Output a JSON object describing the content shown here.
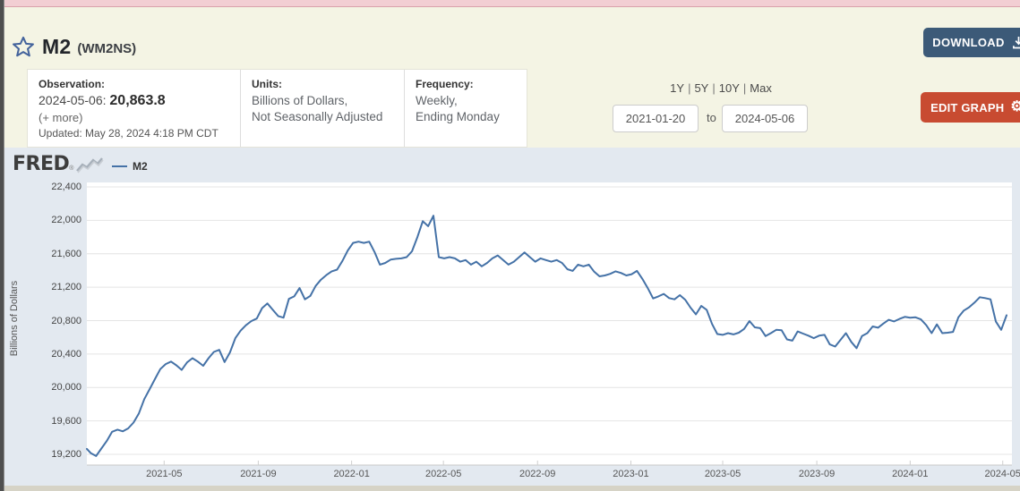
{
  "header": {
    "title": "M2",
    "series_id": "(WM2NS)",
    "download_label": "DOWNLOAD"
  },
  "info": {
    "observation_label": "Observation:",
    "observation_date": "2024-05-06:",
    "observation_value": "20,863.8",
    "more_label": "(+ more)",
    "updated": "Updated: May 28, 2024 4:18 PM CDT",
    "units_label": "Units:",
    "units_line1": "Billions of Dollars,",
    "units_line2": "Not Seasonally Adjusted",
    "frequency_label": "Frequency:",
    "frequency_line1": "Weekly,",
    "frequency_line2": "Ending Monday"
  },
  "range": {
    "presets": [
      "1Y",
      "5Y",
      "10Y",
      "Max"
    ],
    "separator": "|",
    "from": "2021-01-20",
    "to_word": "to",
    "to": "2024-05-06"
  },
  "edit_graph_label": "EDIT GRAPH",
  "logo": {
    "text": "FRED",
    "registered": "®"
  },
  "chart_data": {
    "type": "line",
    "legend": "M2",
    "ylabel": "Billions of Dollars",
    "ylim": [
      19200,
      22400
    ],
    "x_range": [
      "2021-01-20",
      "2024-05-06"
    ],
    "grid": true,
    "legend_position": "top-left",
    "line_color": "#4572a7",
    "plot_bg": "#ffffff",
    "outer_bg": "#e3e9f0",
    "y_ticks": [
      {
        "v": 22400,
        "label": "22,400"
      },
      {
        "v": 22000,
        "label": "22,000"
      },
      {
        "v": 21600,
        "label": "21,600"
      },
      {
        "v": 21200,
        "label": "21,200"
      },
      {
        "v": 20800,
        "label": "20,800"
      },
      {
        "v": 20400,
        "label": "20,400"
      },
      {
        "v": 20000,
        "label": "20,000"
      },
      {
        "v": 19600,
        "label": "19,600"
      },
      {
        "v": 19200,
        "label": "19,200"
      }
    ],
    "x_ticks": [
      {
        "date": "2021-05-01",
        "label": "2021-05"
      },
      {
        "date": "2021-09-01",
        "label": "2021-09"
      },
      {
        "date": "2022-01-01",
        "label": "2022-01"
      },
      {
        "date": "2022-05-01",
        "label": "2022-05"
      },
      {
        "date": "2022-09-01",
        "label": "2022-09"
      },
      {
        "date": "2023-01-01",
        "label": "2023-01"
      },
      {
        "date": "2023-05-01",
        "label": "2023-05"
      },
      {
        "date": "2023-09-01",
        "label": "2023-09"
      },
      {
        "date": "2024-01-01",
        "label": "2024-01"
      },
      {
        "date": "2024-05-01",
        "label": "2024-05"
      }
    ],
    "series": [
      {
        "name": "M2",
        "points": [
          [
            "2021-01-20",
            19265
          ],
          [
            "2021-01-25",
            19215
          ],
          [
            "2021-02-01",
            19180
          ],
          [
            "2021-02-08",
            19270
          ],
          [
            "2021-02-15",
            19360
          ],
          [
            "2021-02-22",
            19470
          ],
          [
            "2021-03-01",
            19495
          ],
          [
            "2021-03-08",
            19475
          ],
          [
            "2021-03-15",
            19510
          ],
          [
            "2021-03-22",
            19580
          ],
          [
            "2021-03-29",
            19690
          ],
          [
            "2021-04-05",
            19860
          ],
          [
            "2021-04-12",
            19980
          ],
          [
            "2021-04-19",
            20100
          ],
          [
            "2021-04-26",
            20220
          ],
          [
            "2021-05-03",
            20280
          ],
          [
            "2021-05-10",
            20310
          ],
          [
            "2021-05-17",
            20265
          ],
          [
            "2021-05-24",
            20210
          ],
          [
            "2021-05-31",
            20300
          ],
          [
            "2021-06-07",
            20350
          ],
          [
            "2021-06-14",
            20310
          ],
          [
            "2021-06-21",
            20260
          ],
          [
            "2021-06-28",
            20350
          ],
          [
            "2021-07-05",
            20425
          ],
          [
            "2021-07-12",
            20450
          ],
          [
            "2021-07-19",
            20305
          ],
          [
            "2021-07-26",
            20420
          ],
          [
            "2021-08-02",
            20590
          ],
          [
            "2021-08-09",
            20680
          ],
          [
            "2021-08-16",
            20745
          ],
          [
            "2021-08-23",
            20795
          ],
          [
            "2021-08-30",
            20825
          ],
          [
            "2021-09-06",
            20950
          ],
          [
            "2021-09-13",
            21005
          ],
          [
            "2021-09-20",
            20930
          ],
          [
            "2021-09-27",
            20855
          ],
          [
            "2021-10-04",
            20835
          ],
          [
            "2021-10-11",
            21060
          ],
          [
            "2021-10-18",
            21090
          ],
          [
            "2021-10-25",
            21190
          ],
          [
            "2021-11-01",
            21055
          ],
          [
            "2021-11-08",
            21095
          ],
          [
            "2021-11-15",
            21215
          ],
          [
            "2021-11-22",
            21290
          ],
          [
            "2021-11-29",
            21345
          ],
          [
            "2021-12-06",
            21390
          ],
          [
            "2021-12-13",
            21410
          ],
          [
            "2021-12-20",
            21515
          ],
          [
            "2021-12-27",
            21640
          ],
          [
            "2022-01-03",
            21730
          ],
          [
            "2022-01-10",
            21745
          ],
          [
            "2022-01-17",
            21730
          ],
          [
            "2022-01-24",
            21745
          ],
          [
            "2022-01-31",
            21620
          ],
          [
            "2022-02-07",
            21470
          ],
          [
            "2022-02-14",
            21490
          ],
          [
            "2022-02-21",
            21530
          ],
          [
            "2022-02-28",
            21540
          ],
          [
            "2022-03-07",
            21545
          ],
          [
            "2022-03-14",
            21560
          ],
          [
            "2022-03-21",
            21630
          ],
          [
            "2022-03-28",
            21800
          ],
          [
            "2022-04-04",
            21990
          ],
          [
            "2022-04-11",
            21930
          ],
          [
            "2022-04-18",
            22055
          ],
          [
            "2022-04-25",
            21560
          ],
          [
            "2022-05-02",
            21545
          ],
          [
            "2022-05-09",
            21560
          ],
          [
            "2022-05-16",
            21545
          ],
          [
            "2022-05-23",
            21505
          ],
          [
            "2022-05-30",
            21525
          ],
          [
            "2022-06-06",
            21470
          ],
          [
            "2022-06-13",
            21505
          ],
          [
            "2022-06-20",
            21450
          ],
          [
            "2022-06-27",
            21490
          ],
          [
            "2022-07-04",
            21545
          ],
          [
            "2022-07-11",
            21580
          ],
          [
            "2022-07-18",
            21525
          ],
          [
            "2022-07-25",
            21470
          ],
          [
            "2022-08-01",
            21505
          ],
          [
            "2022-08-08",
            21560
          ],
          [
            "2022-08-15",
            21615
          ],
          [
            "2022-08-22",
            21560
          ],
          [
            "2022-08-29",
            21505
          ],
          [
            "2022-09-05",
            21545
          ],
          [
            "2022-09-12",
            21525
          ],
          [
            "2022-09-19",
            21505
          ],
          [
            "2022-09-26",
            21525
          ],
          [
            "2022-10-03",
            21490
          ],
          [
            "2022-10-10",
            21415
          ],
          [
            "2022-10-17",
            21395
          ],
          [
            "2022-10-24",
            21470
          ],
          [
            "2022-10-31",
            21450
          ],
          [
            "2022-11-07",
            21470
          ],
          [
            "2022-11-14",
            21385
          ],
          [
            "2022-11-21",
            21330
          ],
          [
            "2022-11-28",
            21340
          ],
          [
            "2022-12-05",
            21360
          ],
          [
            "2022-12-12",
            21390
          ],
          [
            "2022-12-19",
            21370
          ],
          [
            "2022-12-26",
            21340
          ],
          [
            "2023-01-02",
            21355
          ],
          [
            "2023-01-09",
            21395
          ],
          [
            "2023-01-16",
            21300
          ],
          [
            "2023-01-23",
            21190
          ],
          [
            "2023-01-30",
            21065
          ],
          [
            "2023-02-06",
            21090
          ],
          [
            "2023-02-13",
            21120
          ],
          [
            "2023-02-20",
            21070
          ],
          [
            "2023-02-27",
            21055
          ],
          [
            "2023-03-06",
            21105
          ],
          [
            "2023-03-13",
            21050
          ],
          [
            "2023-03-20",
            20955
          ],
          [
            "2023-03-27",
            20875
          ],
          [
            "2023-04-03",
            20975
          ],
          [
            "2023-04-10",
            20930
          ],
          [
            "2023-04-17",
            20760
          ],
          [
            "2023-04-24",
            20640
          ],
          [
            "2023-05-01",
            20630
          ],
          [
            "2023-05-08",
            20650
          ],
          [
            "2023-05-15",
            20635
          ],
          [
            "2023-05-22",
            20655
          ],
          [
            "2023-05-29",
            20700
          ],
          [
            "2023-06-05",
            20795
          ],
          [
            "2023-06-12",
            20720
          ],
          [
            "2023-06-19",
            20710
          ],
          [
            "2023-06-26",
            20615
          ],
          [
            "2023-07-03",
            20650
          ],
          [
            "2023-07-10",
            20690
          ],
          [
            "2023-07-17",
            20685
          ],
          [
            "2023-07-24",
            20575
          ],
          [
            "2023-07-31",
            20560
          ],
          [
            "2023-08-07",
            20670
          ],
          [
            "2023-08-14",
            20645
          ],
          [
            "2023-08-21",
            20620
          ],
          [
            "2023-08-28",
            20590
          ],
          [
            "2023-09-04",
            20620
          ],
          [
            "2023-09-11",
            20630
          ],
          [
            "2023-09-18",
            20515
          ],
          [
            "2023-09-25",
            20490
          ],
          [
            "2023-10-02",
            20570
          ],
          [
            "2023-10-09",
            20650
          ],
          [
            "2023-10-16",
            20545
          ],
          [
            "2023-10-23",
            20470
          ],
          [
            "2023-10-30",
            20615
          ],
          [
            "2023-11-06",
            20650
          ],
          [
            "2023-11-13",
            20730
          ],
          [
            "2023-11-20",
            20715
          ],
          [
            "2023-11-27",
            20765
          ],
          [
            "2023-12-04",
            20810
          ],
          [
            "2023-12-11",
            20790
          ],
          [
            "2023-12-18",
            20820
          ],
          [
            "2023-12-25",
            20845
          ],
          [
            "2024-01-01",
            20835
          ],
          [
            "2024-01-08",
            20840
          ],
          [
            "2024-01-15",
            20815
          ],
          [
            "2024-01-22",
            20745
          ],
          [
            "2024-01-29",
            20650
          ],
          [
            "2024-02-05",
            20755
          ],
          [
            "2024-02-12",
            20650
          ],
          [
            "2024-02-19",
            20655
          ],
          [
            "2024-02-26",
            20665
          ],
          [
            "2024-03-04",
            20840
          ],
          [
            "2024-03-11",
            20920
          ],
          [
            "2024-03-18",
            20960
          ],
          [
            "2024-03-25",
            21015
          ],
          [
            "2024-04-01",
            21080
          ],
          [
            "2024-04-08",
            21070
          ],
          [
            "2024-04-15",
            21055
          ],
          [
            "2024-04-22",
            20790
          ],
          [
            "2024-04-29",
            20690
          ],
          [
            "2024-05-06",
            20863.8
          ]
        ]
      }
    ]
  }
}
